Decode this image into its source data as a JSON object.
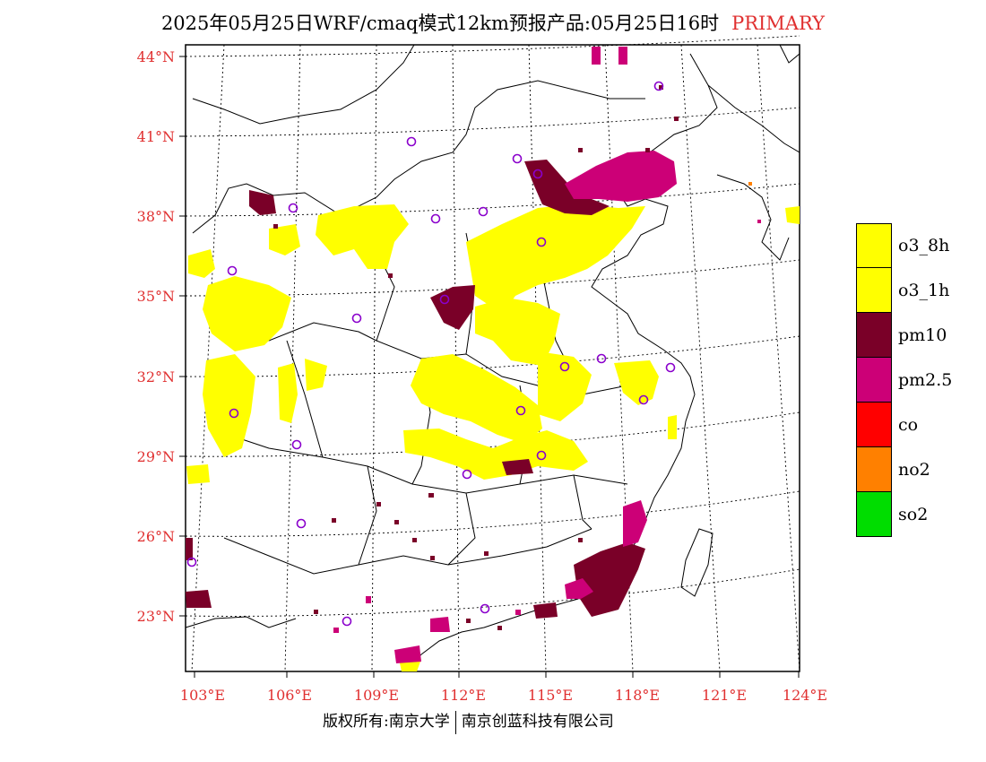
{
  "title": {
    "main": "2025年05月25日WRF/cmaq模式12km预报产品:05月25日16时",
    "suffix": "PRIMARY"
  },
  "lat_labels": [
    "44°N",
    "41°N",
    "38°N",
    "35°N",
    "32°N",
    "29°N",
    "26°N",
    "23°N"
  ],
  "lon_labels": [
    "103°E",
    "106°E",
    "109°E",
    "112°E",
    "115°E",
    "118°E",
    "121°E",
    "124°E"
  ],
  "legend": [
    {
      "label": "o3_8h",
      "color": "#ffff00"
    },
    {
      "label": "o3_1h",
      "color": "#ffff00"
    },
    {
      "label": "pm10",
      "color": "#7a0028"
    },
    {
      "label": "pm2.5",
      "color": "#cc0077"
    },
    {
      "label": "co",
      "color": "#ff0000"
    },
    {
      "label": "no2",
      "color": "#ff8000"
    },
    {
      "label": "so2",
      "color": "#00dd00"
    }
  ],
  "copyright": {
    "left": "版权所有:南京大学",
    "right": "南京创蓝科技有限公司"
  }
}
